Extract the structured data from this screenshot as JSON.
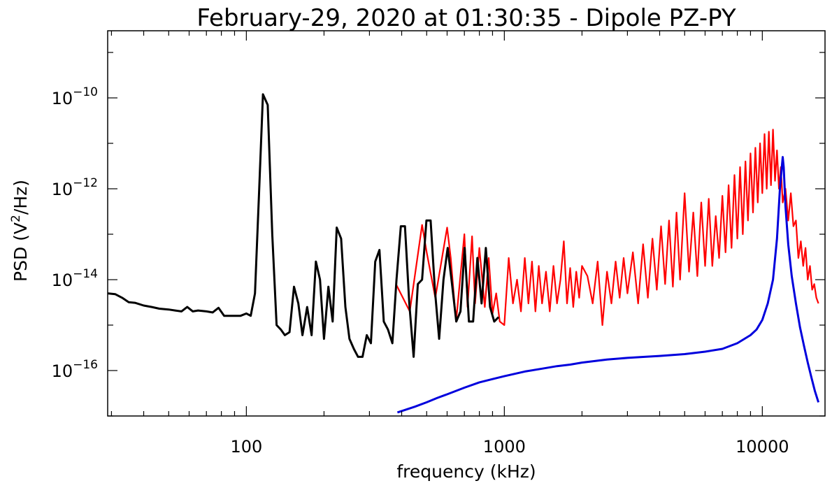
{
  "chart_data": {
    "type": "line",
    "title": "February-29, 2020 at 01:30:35 - Dipole PZ-PY",
    "xlabel": "frequency (kHz)",
    "ylabel_parts": [
      "PSD (V",
      "2",
      "/Hz)"
    ],
    "xscale": "log",
    "yscale": "log",
    "xlim": [
      29,
      17500
    ],
    "ylim": [
      1e-17,
      3e-09
    ],
    "grid": false,
    "x_ticks": [
      {
        "value": 100,
        "label": "100"
      },
      {
        "value": 1000,
        "label": "1000"
      },
      {
        "value": 10000,
        "label": "10000"
      }
    ],
    "y_ticks": [
      {
        "value": 1e-10,
        "base": "10",
        "exp": "−10"
      },
      {
        "value": 1e-12,
        "base": "10",
        "exp": "−12"
      },
      {
        "value": 1e-14,
        "base": "10",
        "exp": "−14"
      },
      {
        "value": 1e-16,
        "base": "10",
        "exp": "−16"
      }
    ],
    "series": [
      {
        "color": "#ff0000",
        "x": [
          380,
          430,
          480,
          500,
          540,
          600,
          620,
          650,
          700,
          720,
          750,
          770,
          800,
          840,
          870,
          900,
          930,
          960,
          1000,
          1040,
          1080,
          1120,
          1160,
          1200,
          1240,
          1280,
          1320,
          1360,
          1400,
          1450,
          1500,
          1550,
          1600,
          1650,
          1700,
          1750,
          1800,
          1850,
          1900,
          1950,
          2000,
          2100,
          2200,
          2300,
          2400,
          2500,
          2600,
          2700,
          2800,
          2900,
          3000,
          3150,
          3300,
          3450,
          3600,
          3750,
          3900,
          4050,
          4200,
          4350,
          4500,
          4650,
          4800,
          5000,
          5200,
          5400,
          5600,
          5800,
          6000,
          6200,
          6400,
          6600,
          6800,
          7000,
          7200,
          7400,
          7600,
          7800,
          8000,
          8200,
          8400,
          8600,
          8800,
          9000,
          9200,
          9400,
          9600,
          9800,
          10000,
          10200,
          10400,
          10600,
          10800,
          11000,
          11200,
          11400,
          11600,
          11800,
          12000,
          12300,
          12600,
          12900,
          13200,
          13500,
          13800,
          14100,
          14400,
          14700,
          15000,
          15300,
          15600,
          15900,
          16200,
          16500
        ],
        "y": [
          8e-15,
          2e-15,
          1.6e-13,
          4e-14,
          4e-15,
          1.4e-13,
          3e-14,
          1.2e-15,
          1e-13,
          2.5e-15,
          9e-14,
          3e-15,
          5e-14,
          2.5e-15,
          3e-14,
          1.8e-15,
          5e-15,
          1.2e-15,
          1e-15,
          3e-14,
          3e-15,
          1e-14,
          2e-15,
          3e-14,
          3e-15,
          2.5e-14,
          2e-15,
          2e-14,
          3e-15,
          1.5e-14,
          2e-15,
          2e-14,
          3e-15,
          1e-14,
          7e-14,
          3e-15,
          1.8e-14,
          2.5e-15,
          1.5e-14,
          4e-15,
          2e-14,
          1.2e-14,
          3e-15,
          2.5e-14,
          1e-15,
          1.5e-14,
          3e-15,
          2.5e-14,
          4e-15,
          3e-14,
          5e-15,
          4e-14,
          3e-15,
          6e-14,
          4e-15,
          8e-14,
          6e-15,
          1.5e-13,
          8e-15,
          2e-13,
          7e-15,
          3e-13,
          1e-14,
          8e-13,
          1.5e-14,
          3e-13,
          1.2e-14,
          5e-13,
          2e-14,
          6e-13,
          2e-14,
          2.5e-13,
          3e-14,
          7e-13,
          4e-14,
          1.2e-12,
          5e-14,
          2e-12,
          8e-14,
          3e-12,
          1e-13,
          4e-12,
          2e-13,
          6e-12,
          3e-13,
          8e-12,
          5e-13,
          1e-11,
          8e-13,
          1.6e-11,
          1e-12,
          1.8e-11,
          1.2e-12,
          2e-11,
          1.5e-12,
          7e-12,
          1e-12,
          3e-12,
          5e-13,
          1e-12,
          2e-13,
          8e-13,
          1.5e-13,
          2e-13,
          3e-14,
          7e-14,
          2e-14,
          5e-14,
          1e-14,
          2e-14,
          6e-15,
          8e-15,
          4e-15,
          3e-15
        ],
        "line_width": 2.2
      },
      {
        "color": "#000000",
        "x": [
          29,
          31,
          33,
          35,
          37,
          40,
          43,
          46,
          50,
          53,
          56,
          59,
          62,
          65,
          70,
          74,
          78,
          82,
          86,
          90,
          95,
          100,
          104,
          108,
          112,
          116,
          121,
          126,
          131,
          136,
          141,
          147,
          153,
          159,
          165,
          172,
          179,
          186,
          193,
          200,
          208,
          216,
          224,
          233,
          242,
          251,
          261,
          271,
          282,
          293,
          304,
          316,
          328,
          341,
          354,
          368,
          382,
          397,
          412,
          428,
          445,
          462,
          480,
          499,
          518,
          538,
          559,
          581,
          603,
          627,
          651,
          676,
          702,
          729,
          757,
          786,
          816,
          848,
          880,
          914,
          950
        ],
        "y": [
          5e-15,
          4.8e-15,
          4e-15,
          3.2e-15,
          3.1e-15,
          2.7e-15,
          2.5e-15,
          2.3e-15,
          2.2e-15,
          2.1e-15,
          2e-15,
          2.5e-15,
          2e-15,
          2.1e-15,
          2e-15,
          1.9e-15,
          2.4e-15,
          1.6e-15,
          1.6e-15,
          1.6e-15,
          1.6e-15,
          1.8e-15,
          1.6e-15,
          5e-15,
          8e-13,
          1.2e-10,
          7e-11,
          1e-13,
          1e-15,
          8e-16,
          6e-16,
          7e-16,
          7e-15,
          3e-15,
          6e-16,
          2.5e-15,
          6e-16,
          2.5e-14,
          1e-14,
          5e-16,
          7e-15,
          1.2e-15,
          1.4e-13,
          8e-14,
          2.5e-15,
          5e-16,
          3e-16,
          2e-16,
          2e-16,
          6e-16,
          4e-16,
          2.5e-14,
          4.5e-14,
          1.2e-15,
          8e-16,
          4e-16,
          1e-14,
          1.5e-13,
          1.5e-13,
          3e-15,
          2e-16,
          8e-15,
          1e-14,
          2e-13,
          2e-13,
          6e-15,
          5e-16,
          1e-14,
          5e-14,
          8e-15,
          1.2e-15,
          2e-15,
          5e-14,
          1.2e-15,
          1.2e-15,
          3e-14,
          3e-15,
          5e-14,
          2.5e-15,
          1.2e-15,
          1.5e-15
        ],
        "line_width": 3
      },
      {
        "color": "#0000dd",
        "x": [
          385,
          450,
          500,
          550,
          600,
          700,
          800,
          900,
          1000,
          1200,
          1400,
          1600,
          1800,
          2000,
          2500,
          3000,
          3500,
          4000,
          5000,
          6000,
          7000,
          8000,
          9000,
          9500,
          10000,
          10500,
          11000,
          11400,
          11700,
          11900,
          12000,
          12100,
          12300,
          12600,
          13000,
          13500,
          14000,
          14500,
          15000,
          15500,
          16000,
          16500
        ],
        "y": [
          1.2e-17,
          1.6e-17,
          2e-17,
          2.5e-17,
          3e-17,
          4.2e-17,
          5.5e-17,
          6.5e-17,
          7.5e-17,
          9.5e-17,
          1.1e-16,
          1.25e-16,
          1.35e-16,
          1.5e-16,
          1.75e-16,
          1.9e-16,
          2e-16,
          2.1e-16,
          2.3e-16,
          2.6e-16,
          3e-16,
          4e-16,
          6e-16,
          8e-16,
          1.3e-15,
          3e-15,
          1e-14,
          8e-14,
          1e-12,
          3e-12,
          5e-12,
          3e-12,
          4e-13,
          6e-14,
          1.2e-14,
          3e-15,
          9e-16,
          3.5e-16,
          1.5e-16,
          7e-17,
          3.5e-17,
          2e-17
        ],
        "line_width": 3
      }
    ]
  }
}
